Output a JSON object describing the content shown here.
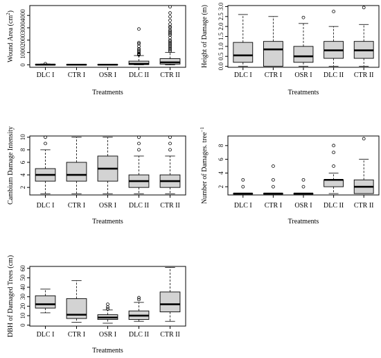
{
  "figure": {
    "colors": {
      "box_fill": "#d3d3d3",
      "stroke": "#000000",
      "background": "#ffffff"
    },
    "xlabel": "Treatments"
  },
  "chart_data": [
    {
      "type": "box",
      "title": "",
      "xlabel": "Treatments",
      "ylabel": "Wound Area (cm²)",
      "ylabel_main": "Wound Area (cm",
      "ylabel_sup": "2",
      "ylabel_tail": ")",
      "categories": [
        "DLC I",
        "CTR I",
        "OSR I",
        "DLC II",
        "CTR II"
      ],
      "ylim": [
        -200,
        4800
      ],
      "yticks": [
        0,
        1000,
        2000,
        3000,
        4000
      ],
      "yticklabels": [
        "0",
        "1000",
        "2000",
        "3000",
        "4000"
      ],
      "boxes": [
        {
          "min": 0,
          "q1": 5,
          "median": 15,
          "q3": 30,
          "max": 70,
          "outliers": [
            90
          ]
        },
        {
          "min": 0,
          "q1": 3,
          "median": 10,
          "q3": 20,
          "max": 40,
          "outliers": []
        },
        {
          "min": 0,
          "q1": 3,
          "median": 10,
          "q3": 25,
          "max": 45,
          "outliers": []
        },
        {
          "min": 0,
          "q1": 20,
          "median": 80,
          "q3": 300,
          "max": 750,
          "outliers": [
            800,
            850,
            900,
            1000,
            1100,
            1200,
            1300,
            1500,
            1700,
            1800,
            2900
          ]
        },
        {
          "min": 0,
          "q1": 60,
          "median": 200,
          "q3": 500,
          "max": 1000,
          "outliers": [
            1100,
            1200,
            1300,
            1400,
            1500,
            1600,
            1700,
            1800,
            1900,
            2000,
            2200,
            2400,
            2500,
            2600,
            2700,
            2800,
            3000,
            3100,
            3300,
            3600,
            3900,
            4200,
            4700
          ]
        }
      ]
    },
    {
      "type": "box",
      "title": "",
      "xlabel": "Treatments",
      "ylabel": "Height of Damage (m)",
      "ylabel_main": "Height of Damage (m)",
      "ylabel_sup": "",
      "ylabel_tail": "",
      "categories": [
        "DLC I",
        "CTR I",
        "OSR I",
        "DLC II",
        "CTR II"
      ],
      "ylim": [
        -0.05,
        3.05
      ],
      "yticks": [
        0,
        0.5,
        1,
        1.5,
        2,
        2.5,
        3
      ],
      "yticklabels": [
        "0.0",
        "0.5",
        "1.0",
        "1.5",
        "2.0",
        "2.5",
        "3.0"
      ],
      "boxes": [
        {
          "min": 0.0,
          "q1": 0.2,
          "median": 0.55,
          "q3": 1.2,
          "max": 2.6,
          "outliers": []
        },
        {
          "min": 0.0,
          "q1": 0.0,
          "median": 0.85,
          "q3": 1.25,
          "max": 2.5,
          "outliers": []
        },
        {
          "min": 0.0,
          "q1": 0.2,
          "median": 0.5,
          "q3": 1.0,
          "max": 2.15,
          "outliers": [
            2.45
          ]
        },
        {
          "min": 0.0,
          "q1": 0.4,
          "median": 0.8,
          "q3": 1.25,
          "max": 2.0,
          "outliers": [
            2.75
          ]
        },
        {
          "min": 0.0,
          "q1": 0.4,
          "median": 0.8,
          "q3": 1.25,
          "max": 2.1,
          "outliers": [
            2.95
          ]
        }
      ]
    },
    {
      "type": "box",
      "title": "",
      "xlabel": "Treatments",
      "ylabel": "Cambium Damage Intensity",
      "ylabel_main": "Cambium Damage Intensity",
      "ylabel_sup": "",
      "ylabel_tail": "",
      "categories": [
        "DLC I",
        "CTR I",
        "OSR I",
        "DLC II",
        "CTR II"
      ],
      "ylim": [
        0.8,
        10.2
      ],
      "yticks": [
        2,
        4,
        6,
        8,
        10
      ],
      "yticklabels": [
        "2",
        "4",
        "6",
        "8",
        "10"
      ],
      "boxes": [
        {
          "min": 1,
          "q1": 3,
          "median": 4,
          "q3": 5,
          "max": 8,
          "outliers": [
            9,
            10
          ]
        },
        {
          "min": 1,
          "q1": 3,
          "median": 4,
          "q3": 6,
          "max": 10,
          "outliers": []
        },
        {
          "min": 1,
          "q1": 3,
          "median": 5,
          "q3": 7,
          "max": 10,
          "outliers": []
        },
        {
          "min": 1,
          "q1": 2,
          "median": 3,
          "q3": 4,
          "max": 7,
          "outliers": [
            8,
            9,
            10
          ]
        },
        {
          "min": 1,
          "q1": 2,
          "median": 3,
          "q3": 4,
          "max": 7,
          "outliers": [
            8,
            9,
            10
          ]
        }
      ]
    },
    {
      "type": "box",
      "title": "",
      "xlabel": "Treatments",
      "ylabel": "Number of Damages. tree⁻¹",
      "ylabel_main": "Number of Damages. tree",
      "ylabel_sup": "−1",
      "ylabel_tail": "",
      "categories": [
        "DLC I",
        "CTR I",
        "OSR I",
        "DLC II",
        "CTR II"
      ],
      "ylim": [
        0.8,
        9.4
      ],
      "yticks": [
        2,
        4,
        6,
        8
      ],
      "yticklabels": [
        "2",
        "4",
        "6",
        "8"
      ],
      "boxes": [
        {
          "min": 1,
          "q1": 1,
          "median": 1,
          "q3": 1,
          "max": 1,
          "outliers": [
            2,
            3
          ]
        },
        {
          "min": 1,
          "q1": 1,
          "median": 1,
          "q3": 1,
          "max": 1,
          "outliers": [
            2,
            3,
            5
          ]
        },
        {
          "min": 1,
          "q1": 1,
          "median": 1,
          "q3": 1,
          "max": 1,
          "outliers": [
            2,
            3
          ]
        },
        {
          "min": 1,
          "q1": 2,
          "median": 3,
          "q3": 3,
          "max": 4,
          "outliers": [
            5,
            7,
            8
          ]
        },
        {
          "min": 1,
          "q1": 1,
          "median": 2,
          "q3": 3,
          "max": 6,
          "outliers": [
            9
          ]
        }
      ]
    },
    {
      "type": "box",
      "title": "",
      "xlabel": "Treatments",
      "ylabel": "DBH of Damaged Trees (cm)",
      "ylabel_main": "DBH of Damaged Trees (cm)",
      "ylabel_sup": "",
      "ylabel_tail": "",
      "categories": [
        "DLC I",
        "CTR I",
        "OSR I",
        "DLC II",
        "CTR II"
      ],
      "ylim": [
        -1,
        62
      ],
      "yticks": [
        0,
        10,
        20,
        30,
        40,
        50,
        60
      ],
      "yticklabels": [
        "0",
        "10",
        "20",
        "30",
        "40",
        "50",
        "60"
      ],
      "boxes": [
        {
          "min": 13,
          "q1": 18,
          "median": 22,
          "q3": 31,
          "max": 38,
          "outliers": []
        },
        {
          "min": 3,
          "q1": 7,
          "median": 11,
          "q3": 28,
          "max": 47,
          "outliers": []
        },
        {
          "min": 2,
          "q1": 6,
          "median": 8,
          "q3": 11,
          "max": 16,
          "outliers": [
            17,
            19,
            22
          ]
        },
        {
          "min": 4,
          "q1": 6,
          "median": 10,
          "q3": 15,
          "max": 24,
          "outliers": [
            27,
            29
          ]
        },
        {
          "min": 4,
          "q1": 14,
          "median": 22,
          "q3": 35,
          "max": 61,
          "outliers": []
        }
      ]
    }
  ]
}
